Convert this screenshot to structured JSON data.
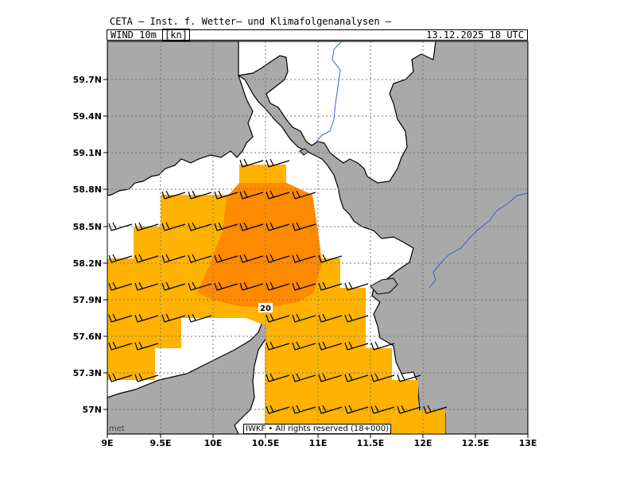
{
  "header": {
    "title": "CETA – Inst. f. Wetter– und Klimafolgenanalysen –",
    "field_prefix": "WIND_10m_",
    "field_unit": "[kn]",
    "datetime": "13.12.2025  18 UTC"
  },
  "map": {
    "x_ticks": [
      "9E",
      "9.5E",
      "10E",
      "10.5E",
      "11E",
      "11.5E",
      "12E",
      "12.5E",
      "13E"
    ],
    "y_ticks": [
      "57N",
      "57.3N",
      "57.6N",
      "57.9N",
      "58.2N",
      "58.5N",
      "58.8N",
      "59.1N",
      "59.4N",
      "59.7N"
    ],
    "contour_label": "20",
    "colors": {
      "land": "#a9a9a9",
      "sea": "#ffffff",
      "wind_15_20": "#ffb300",
      "wind_20_plus": "#ff8a00",
      "river": "#3a5fd8"
    }
  },
  "footer": {
    "credit": "IWKF • All rights reserved (18+000)",
    "logo": "met"
  }
}
